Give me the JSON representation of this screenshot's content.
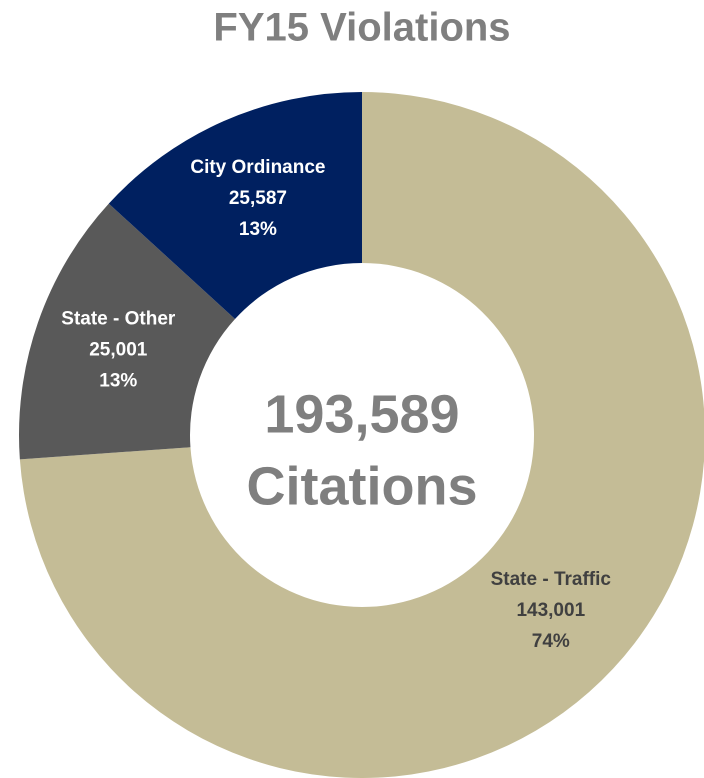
{
  "chart_data": {
    "type": "donut",
    "title": "FY15 Violations",
    "center_label": [
      "193,589",
      "Citations"
    ],
    "categories": [
      "State - Traffic",
      "State - Other",
      "City Ordinance"
    ],
    "values": [
      143001,
      25001,
      25587
    ],
    "value_labels": [
      "143,001",
      "25,001",
      "25,587"
    ],
    "percent_labels": [
      "74%",
      "13%",
      "13%"
    ],
    "colors": [
      "#c4bc96",
      "#595959",
      "#002060"
    ],
    "label_colors": [
      "#404040",
      "#ffffff",
      "#ffffff"
    ]
  }
}
